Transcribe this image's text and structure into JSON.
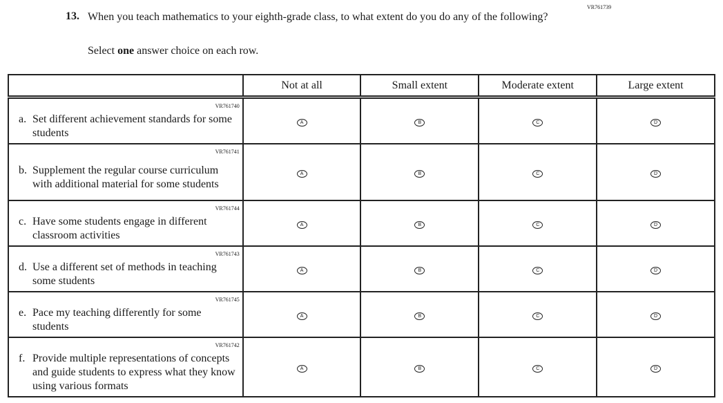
{
  "question_id": "VR761739",
  "question_number": "13.",
  "question_text": "When you teach mathematics to your eighth-grade class, to what extent do you do any of the following?",
  "instruction": {
    "before": "Select ",
    "bold": "one",
    "after": " answer choice on each row."
  },
  "columns": [
    "Not at all",
    "Small extent",
    "Moderate extent",
    "Large extent"
  ],
  "bubble_letters": [
    "A",
    "B",
    "C",
    "D"
  ],
  "rows": [
    {
      "id": "VR761740",
      "letter": "a.",
      "text": "Set different achievement standards for some students"
    },
    {
      "id": "VR761741",
      "letter": "b.",
      "text": "Supplement the regular course curriculum with additional material for some students"
    },
    {
      "id": "VR761744",
      "letter": "c.",
      "text": "Have some students engage in different classroom activities"
    },
    {
      "id": "VR761743",
      "letter": "d.",
      "text": "Use a different set of methods in teaching some students"
    },
    {
      "id": "VR761745",
      "letter": "e.",
      "text": "Pace my teaching differently for some students"
    },
    {
      "id": "VR761742",
      "letter": "f.",
      "text": "Provide multiple representations of concepts and guide students to express what they know using various formats"
    }
  ]
}
